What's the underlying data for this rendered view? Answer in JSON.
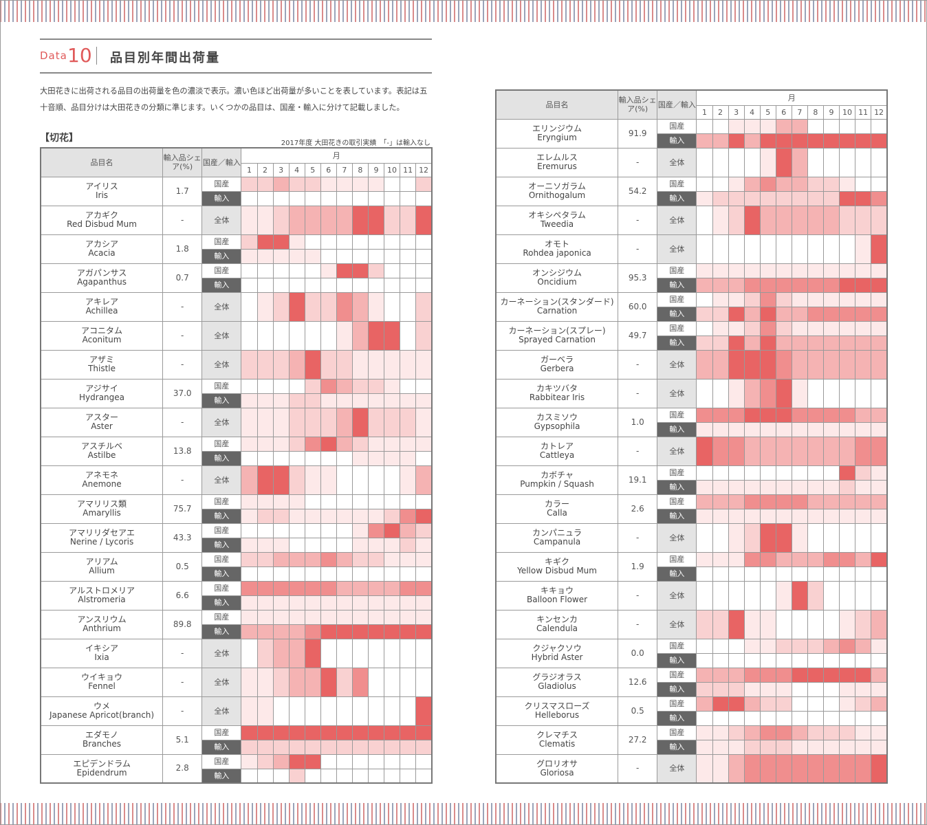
{
  "header": {
    "data_label": "Data",
    "data_number": "10",
    "title": "品目別年間出荷量"
  },
  "description": "大田花きに出荷される品目の出荷量を色の濃淡で表示。濃い色ほど出荷量が多いことを表しています。表記は五十音順、品目分けは大田花きの分類に準じます。いくつかの品目は、国産・輸入に分けて記載しました。",
  "section_title": "【切花】",
  "note": "2017年度 大田花きの取引実績　「-」は輸入なし",
  "legend_colors": [
    "#ffffff",
    "#fde9e9",
    "#f9d1d1",
    "#f5b3b3",
    "#f08e8e",
    "#e86464"
  ],
  "columns": {
    "name": "品目名",
    "share": "輸入品シェア(%)",
    "origin": "国産／輸入",
    "month": "月",
    "months": [
      "1",
      "2",
      "3",
      "4",
      "5",
      "6",
      "7",
      "8",
      "9",
      "10",
      "11",
      "12"
    ]
  },
  "origin_labels": {
    "dom": "国産",
    "imp": "輸入",
    "all": "全体"
  },
  "left_items": [
    {
      "jp": "アイリス",
      "en": "Iris",
      "share": "1.7",
      "rows": [
        {
          "o": "dom",
          "v": "223221111002"
        },
        {
          "o": "imp",
          "v": "000000000000"
        }
      ]
    },
    {
      "jp": "アカギク",
      "en": "Red Disbud Mum",
      "share": "-",
      "rows": [
        {
          "o": "all",
          "v": "112333355225"
        }
      ]
    },
    {
      "jp": "アカシア",
      "en": "Acacia",
      "share": "1.8",
      "rows": [
        {
          "o": "dom",
          "v": "255100000000"
        },
        {
          "o": "imp",
          "v": "111110000000"
        }
      ]
    },
    {
      "jp": "アガパンサス",
      "en": "Agapanthus",
      "share": "0.7",
      "rows": [
        {
          "o": "dom",
          "v": "000001552000"
        },
        {
          "o": "imp",
          "v": "000000000000"
        }
      ]
    },
    {
      "jp": "アキレア",
      "en": "Achillea",
      "share": "-",
      "rows": [
        {
          "o": "all",
          "v": "012522431002"
        }
      ]
    },
    {
      "jp": "アコニタム",
      "en": "Aconitum",
      "share": "-",
      "rows": [
        {
          "o": "all",
          "v": "000000135502"
        }
      ]
    },
    {
      "jp": "アザミ",
      "en": "Thistle",
      "share": "-",
      "rows": [
        {
          "o": "all",
          "v": "222352211111"
        }
      ]
    },
    {
      "jp": "アジサイ",
      "en": "Hydrangea",
      "share": "37.0",
      "rows": [
        {
          "o": "dom",
          "v": "000024322100"
        },
        {
          "o": "imp",
          "v": "111221111111"
        }
      ]
    },
    {
      "jp": "アスター",
      "en": "Aster",
      "share": "-",
      "rows": [
        {
          "o": "all",
          "v": "111222352221"
        }
      ]
    },
    {
      "jp": "アスチルベ",
      "en": "Astilbe",
      "share": "13.8",
      "rows": [
        {
          "o": "dom",
          "v": "111245321111"
        },
        {
          "o": "imp",
          "v": "000000011110"
        }
      ]
    },
    {
      "jp": "アネモネ",
      "en": "Anemone",
      "share": "-",
      "rows": [
        {
          "o": "all",
          "v": "355211000013"
        }
      ]
    },
    {
      "jp": "アマリリス類",
      "en": "Amaryllis",
      "share": "75.7",
      "rows": [
        {
          "o": "dom",
          "v": "111100000000"
        },
        {
          "o": "imp",
          "v": "122111111245"
        }
      ]
    },
    {
      "jp": "アマリリダセアエ",
      "en": "Nerine / Lycoris",
      "share": "43.3",
      "rows": [
        {
          "o": "dom",
          "v": "000000014532"
        },
        {
          "o": "imp",
          "v": "111000011121"
        }
      ]
    },
    {
      "jp": "アリアム",
      "en": "Allium",
      "share": "0.5",
      "rows": [
        {
          "o": "dom",
          "v": "223334322111"
        },
        {
          "o": "imp",
          "v": "000000000000"
        }
      ]
    },
    {
      "jp": "アルストロメリア",
      "en": "Alstromeria",
      "share": "6.6",
      "rows": [
        {
          "o": "dom",
          "v": "444444333344"
        },
        {
          "o": "imp",
          "v": "111111111111"
        }
      ]
    },
    {
      "jp": "アンスリウム",
      "en": "Anthrium",
      "share": "89.8",
      "rows": [
        {
          "o": "dom",
          "v": "111111111111"
        },
        {
          "o": "imp",
          "v": "333345555555"
        }
      ]
    },
    {
      "jp": "イキシア",
      "en": "Ixia",
      "share": "-",
      "rows": [
        {
          "o": "all",
          "v": "023350000000"
        }
      ]
    },
    {
      "jp": "ウイキョウ",
      "en": "Fennel",
      "share": "-",
      "rows": [
        {
          "o": "all",
          "v": "112335240000"
        }
      ]
    },
    {
      "jp": "ウメ",
      "en": "Japanese Apricot(branch)",
      "share": "-",
      "rows": [
        {
          "o": "all",
          "v": "110000000005"
        }
      ]
    },
    {
      "jp": "エダモノ",
      "en": "Branches",
      "share": "5.1",
      "rows": [
        {
          "o": "dom",
          "v": "555555555555"
        },
        {
          "o": "imp",
          "v": "222222222222"
        }
      ]
    },
    {
      "jp": "エピデンドラム",
      "en": "Epidendrum",
      "share": "2.8",
      "rows": [
        {
          "o": "dom",
          "v": "123550000000"
        },
        {
          "o": "imp",
          "v": "000200000000"
        }
      ]
    }
  ],
  "right_items": [
    {
      "jp": "エリンジウム",
      "en": "Eryngium",
      "share": "91.9",
      "rows": [
        {
          "o": "dom",
          "v": "001113300000"
        },
        {
          "o": "imp",
          "v": "335355555555"
        }
      ]
    },
    {
      "jp": "エレムルス",
      "en": "Eremurus",
      "share": "-",
      "rows": [
        {
          "o": "all",
          "v": "000015300000"
        }
      ]
    },
    {
      "jp": "オーニソガラム",
      "en": "Ornithogalum",
      "share": "54.2",
      "rows": [
        {
          "o": "dom",
          "v": "001343322100"
        },
        {
          "o": "imp",
          "v": "122222222554"
        }
      ]
    },
    {
      "jp": "オキシペタラム",
      "en": "Tweedia",
      "share": "-",
      "rows": [
        {
          "o": "all",
          "v": "012533333222"
        }
      ]
    },
    {
      "jp": "オモト",
      "en": "Rohdea japonica",
      "share": "-",
      "rows": [
        {
          "o": "all",
          "v": "000000000015"
        }
      ]
    },
    {
      "jp": "オンシジウム",
      "en": "Oncidium",
      "share": "95.3",
      "rows": [
        {
          "o": "dom",
          "v": "111111111111"
        },
        {
          "o": "imp",
          "v": "333444444555"
        }
      ]
    },
    {
      "jp": "カーネーション(スタンダード)",
      "en": "Carnation",
      "share": "60.0",
      "rows": [
        {
          "o": "dom",
          "v": "011242111111"
        },
        {
          "o": "imp",
          "v": "225353344444"
        }
      ]
    },
    {
      "jp": "カーネーション(スプレー)",
      "en": "Sprayed Carnation",
      "share": "49.7",
      "rows": [
        {
          "o": "dom",
          "v": "011242111111"
        },
        {
          "o": "imp",
          "v": "225353333333"
        }
      ]
    },
    {
      "jp": "ガーベラ",
      "en": "Gerbera",
      "share": "-",
      "rows": [
        {
          "o": "all",
          "v": "335554333333"
        }
      ]
    },
    {
      "jp": "カキツバタ",
      "en": "Rabbitear Iris",
      "share": "-",
      "rows": [
        {
          "o": "all",
          "v": "001345100000"
        }
      ]
    },
    {
      "jp": "カスミソウ",
      "en": "Gypsophila",
      "share": "1.0",
      "rows": [
        {
          "o": "dom",
          "v": "444555444433"
        },
        {
          "o": "imp",
          "v": "111111111111"
        }
      ]
    },
    {
      "jp": "カトレア",
      "en": "Cattleya",
      "share": "-",
      "rows": [
        {
          "o": "all",
          "v": "544333333344"
        }
      ]
    },
    {
      "jp": "カボチャ",
      "en": "Pumpkin / Squash",
      "share": "19.1",
      "rows": [
        {
          "o": "dom",
          "v": "000000000521"
        },
        {
          "o": "imp",
          "v": "111111111211"
        }
      ]
    },
    {
      "jp": "カラー",
      "en": "Calla",
      "share": "2.6",
      "rows": [
        {
          "o": "dom",
          "v": "333444433333"
        },
        {
          "o": "imp",
          "v": "111111111111"
        }
      ]
    },
    {
      "jp": "カンパニュラ",
      "en": "Campanula",
      "share": "-",
      "rows": [
        {
          "o": "all",
          "v": "001255100000"
        }
      ]
    },
    {
      "jp": "キギク",
      "en": "Yellow Disbud Mum",
      "share": "1.9",
      "rows": [
        {
          "o": "dom",
          "v": "111443334435"
        },
        {
          "o": "imp",
          "v": "000000000000"
        }
      ]
    },
    {
      "jp": "キキョウ",
      "en": "Balloon Flower",
      "share": "-",
      "rows": [
        {
          "o": "all",
          "v": "000001520000"
        }
      ]
    },
    {
      "jp": "キンセンカ",
      "en": "Calendula",
      "share": "-",
      "rows": [
        {
          "o": "all",
          "v": "225110000123"
        }
      ]
    },
    {
      "jp": "クジャクソウ",
      "en": "Hybrid Aster",
      "share": "0.0",
      "rows": [
        {
          "o": "dom",
          "v": "000112223431"
        },
        {
          "o": "imp",
          "v": "000000000000"
        }
      ]
    },
    {
      "jp": "グラジオラス",
      "en": "Gladiolus",
      "share": "12.6",
      "rows": [
        {
          "o": "dom",
          "v": "333444555553"
        },
        {
          "o": "imp",
          "v": "222111000111"
        }
      ]
    },
    {
      "jp": "クリスマスローズ",
      "en": "Helleborus",
      "share": "0.5",
      "rows": [
        {
          "o": "dom",
          "v": "355322000123"
        },
        {
          "o": "imp",
          "v": "000000000000"
        }
      ]
    },
    {
      "jp": "クレマチス",
      "en": "Clematis",
      "share": "27.2",
      "rows": [
        {
          "o": "dom",
          "v": "112344322211"
        },
        {
          "o": "imp",
          "v": "111222111111"
        }
      ]
    },
    {
      "jp": "グロリオサ",
      "en": "Gloriosa",
      "share": "-",
      "rows": [
        {
          "o": "all",
          "v": "113444444445"
        }
      ]
    }
  ]
}
